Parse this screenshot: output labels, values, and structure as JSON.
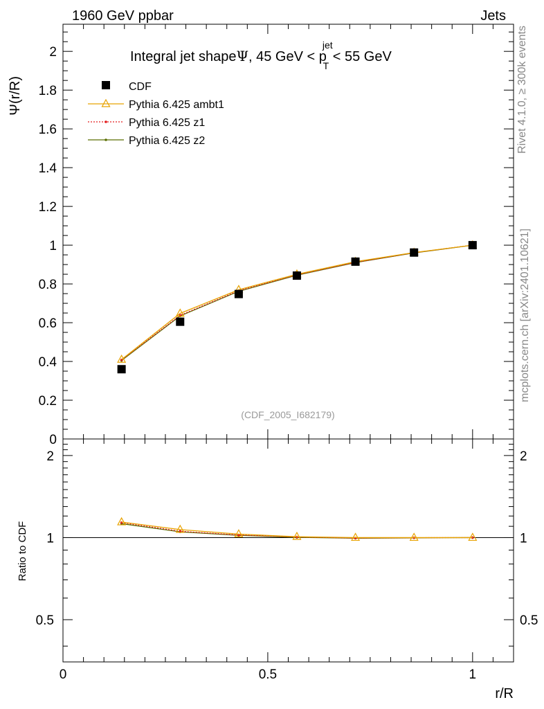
{
  "header": {
    "left": "1960 GeV ppbar",
    "right": "Jets"
  },
  "side_labels": {
    "rivet": "Rivet 4.1.0, ≥ 300k events",
    "mcplots": "mcplots.cern.ch [arXiv:2401.10621]"
  },
  "colors": {
    "cdf": "#000000",
    "ambt1": "#e8a200",
    "z1": "#e31a1c",
    "z2": "#5a6e00",
    "axis": "#000000",
    "watermark": "#9a9a9a"
  },
  "chart_data": [
    {
      "type": "scatter+line",
      "panel": "main",
      "title_parts": {
        "prefix": "Integral jet shape",
        "psi": "Ψ",
        "mid": ", 45 GeV < p",
        "sup": "jet",
        "sub": "T",
        "suffix": " < 55 GeV"
      },
      "ylabel": "Ψ(r/R)",
      "xlim": [
        0,
        1.1
      ],
      "ylim": [
        0,
        2.14
      ],
      "yticks": [
        0,
        0.2,
        0.4,
        0.6,
        0.8,
        1,
        1.2,
        1.4,
        1.6,
        1.8,
        2
      ],
      "ytick_labels": [
        "0",
        "0.2",
        "0.4",
        "0.6",
        "0.8",
        "1",
        "1.2",
        "1.4",
        "1.6",
        "1.8",
        "2"
      ],
      "watermark": "(CDF_2005_I682179)",
      "legend_position": "top-left",
      "x": [
        0.143,
        0.286,
        0.429,
        0.571,
        0.714,
        0.857,
        1.0
      ],
      "series": [
        {
          "name": "CDF",
          "key": "cdf",
          "marker": "square",
          "values": [
            0.36,
            0.605,
            0.748,
            0.843,
            0.915,
            0.962,
            1.0
          ]
        },
        {
          "name": "Pythia 6.425 ambt1",
          "key": "ambt1",
          "marker": "triangle",
          "values": [
            0.41,
            0.648,
            0.77,
            0.85,
            0.915,
            0.962,
            1.0
          ]
        },
        {
          "name": "Pythia 6.425 z1",
          "key": "z1",
          "marker": "dot",
          "values": [
            0.408,
            0.638,
            0.765,
            0.847,
            0.911,
            0.961,
            1.0
          ]
        },
        {
          "name": "Pythia 6.425 z2",
          "key": "z2",
          "marker": "dot",
          "values": [
            0.405,
            0.635,
            0.762,
            0.845,
            0.91,
            0.96,
            1.0
          ]
        }
      ]
    },
    {
      "type": "line",
      "panel": "ratio",
      "ylabel": "Ratio to CDF",
      "xlabel": "r/R",
      "xlim": [
        0,
        1.1
      ],
      "ylim": [
        0.35,
        2.3
      ],
      "yscale": "log",
      "yticks": [
        0.5,
        1,
        2
      ],
      "ytick_labels": [
        "0.5",
        "1",
        "2"
      ],
      "xticks": [
        0,
        0.5,
        1
      ],
      "xtick_labels": [
        "0",
        "0.5",
        "1"
      ],
      "x": [
        0.143,
        0.286,
        0.429,
        0.571,
        0.714,
        0.857,
        1.0
      ],
      "reference": 1.0,
      "series": [
        {
          "name": "Pythia 6.425 ambt1",
          "key": "ambt1",
          "marker": "triangle",
          "values": [
            1.14,
            1.07,
            1.03,
            1.008,
            1.0,
            1.0,
            1.0
          ]
        },
        {
          "name": "Pythia 6.425 z1",
          "key": "z1",
          "marker": "dot",
          "values": [
            1.135,
            1.055,
            1.022,
            1.005,
            0.996,
            0.999,
            1.0
          ]
        },
        {
          "name": "Pythia 6.425 z2",
          "key": "z2",
          "marker": "dot",
          "values": [
            1.125,
            1.05,
            1.019,
            1.002,
            0.995,
            0.998,
            1.0
          ]
        }
      ]
    }
  ]
}
